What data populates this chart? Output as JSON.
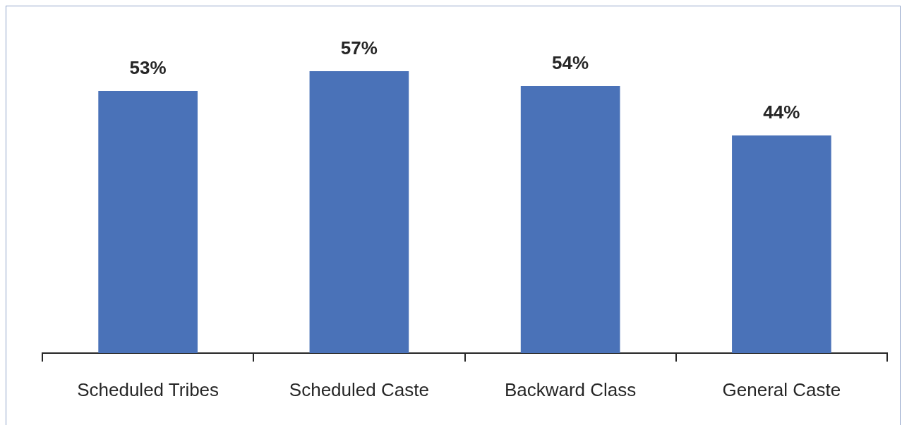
{
  "chart_data": {
    "type": "bar",
    "categories": [
      "Scheduled Tribes",
      "Scheduled Caste",
      "Backward Class",
      "General Caste"
    ],
    "values": [
      53,
      57,
      54,
      44
    ],
    "color": "#4a72b8",
    "value_labels": [
      "53%",
      "57%",
      "54%",
      "44%"
    ],
    "grid": false,
    "legend": false
  }
}
